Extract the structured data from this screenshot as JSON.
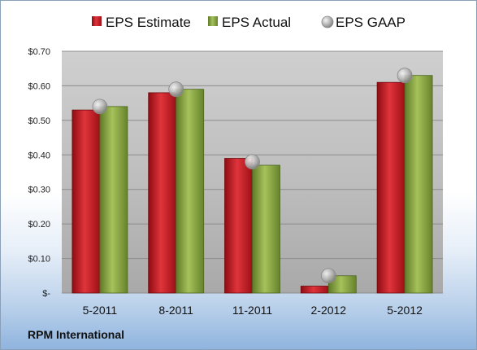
{
  "chart_data": {
    "type": "bar",
    "title": "",
    "xlabel": "",
    "ylabel": "",
    "categories": [
      "5-2011",
      "8-2011",
      "11-2011",
      "2-2012",
      "5-2012"
    ],
    "ylim": [
      0,
      0.7
    ],
    "yticks": [
      0,
      0.1,
      0.2,
      0.3,
      0.4,
      0.5,
      0.6,
      0.7
    ],
    "ytick_labels": [
      "$-",
      "$0.10",
      "$0.20",
      "$0.30",
      "$0.40",
      "$0.50",
      "$0.60",
      "$0.70"
    ],
    "grid": true,
    "legend_position": "top",
    "series": [
      {
        "name": "EPS Estimate",
        "kind": "bar",
        "color": "#c0141c",
        "values": [
          0.53,
          0.58,
          0.39,
          0.02,
          0.61
        ]
      },
      {
        "name": "EPS Actual",
        "kind": "bar",
        "color": "#7f9b3a",
        "values": [
          0.54,
          0.59,
          0.37,
          0.05,
          0.63
        ]
      },
      {
        "name": "EPS GAAP",
        "kind": "marker",
        "color": "#a8a8a8",
        "values": [
          0.54,
          0.59,
          0.38,
          0.05,
          0.63
        ]
      }
    ]
  },
  "footer": {
    "company": "RPM International"
  }
}
